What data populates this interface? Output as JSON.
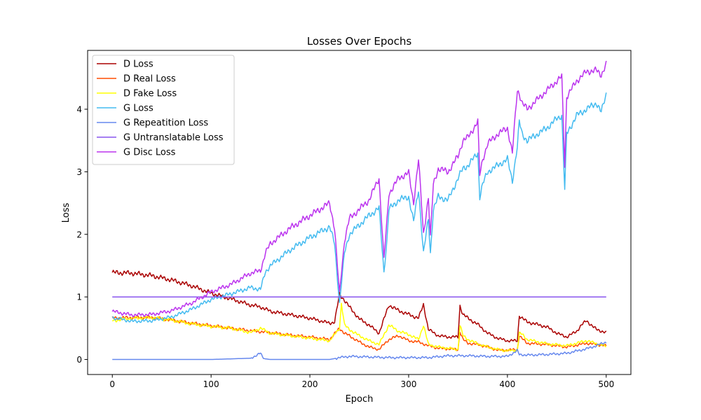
{
  "chart_data": {
    "type": "line",
    "title": "Losses Over Epochs",
    "xlabel": "Epoch",
    "ylabel": "Loss",
    "xlim": [
      -25,
      525
    ],
    "ylim": [
      -0.24,
      4.94
    ],
    "xticks": [
      0,
      100,
      200,
      300,
      400,
      500
    ],
    "yticks": [
      0,
      1,
      2,
      3,
      4
    ],
    "grid": false,
    "legend_position": "top-left",
    "series": [
      {
        "name": "D Loss",
        "color": "#aa0000",
        "x": [
          0,
          20,
          40,
          60,
          80,
          100,
          120,
          140,
          150,
          160,
          200,
          220,
          225,
          230,
          235,
          240,
          250,
          260,
          270,
          280,
          290,
          300,
          310,
          315,
          320,
          330,
          340,
          350,
          352,
          355,
          360,
          370,
          380,
          390,
          400,
          410,
          412,
          415,
          420,
          440,
          450,
          460,
          470,
          475,
          480,
          490,
          500
        ],
        "values": [
          1.39,
          1.38,
          1.34,
          1.27,
          1.18,
          1.06,
          0.97,
          0.87,
          0.84,
          0.77,
          0.66,
          0.58,
          0.6,
          1.04,
          0.95,
          0.84,
          0.65,
          0.55,
          0.42,
          0.87,
          0.78,
          0.72,
          0.66,
          0.88,
          0.48,
          0.38,
          0.36,
          0.36,
          0.86,
          0.72,
          0.66,
          0.56,
          0.42,
          0.34,
          0.3,
          0.3,
          0.7,
          0.66,
          0.6,
          0.52,
          0.42,
          0.36,
          0.45,
          0.55,
          0.62,
          0.48,
          0.43
        ]
      },
      {
        "name": "D Real Loss",
        "color": "#ff4d00",
        "x": [
          0,
          20,
          40,
          60,
          80,
          100,
          120,
          140,
          160,
          180,
          200,
          220,
          230,
          235,
          240,
          250,
          260,
          270,
          280,
          290,
          300,
          310,
          320,
          330,
          340,
          350,
          352,
          355,
          360,
          370,
          380,
          390,
          400,
          410,
          412,
          415,
          420,
          440,
          450,
          460,
          480,
          500
        ],
        "values": [
          0.66,
          0.67,
          0.67,
          0.63,
          0.58,
          0.54,
          0.5,
          0.46,
          0.43,
          0.39,
          0.36,
          0.32,
          0.5,
          0.42,
          0.38,
          0.28,
          0.2,
          0.16,
          0.32,
          0.38,
          0.3,
          0.28,
          0.22,
          0.18,
          0.17,
          0.16,
          0.45,
          0.32,
          0.26,
          0.24,
          0.2,
          0.15,
          0.15,
          0.16,
          0.38,
          0.33,
          0.26,
          0.24,
          0.22,
          0.2,
          0.26,
          0.22
        ]
      },
      {
        "name": "D Fake Loss",
        "color": "#ffff00",
        "x": [
          0,
          20,
          40,
          60,
          80,
          100,
          120,
          140,
          150,
          160,
          180,
          200,
          220,
          230,
          232,
          235,
          240,
          250,
          260,
          270,
          280,
          290,
          300,
          310,
          315,
          320,
          330,
          340,
          350,
          352,
          355,
          360,
          370,
          380,
          390,
          400,
          410,
          412,
          415,
          420,
          440,
          460,
          480,
          500
        ],
        "values": [
          0.62,
          0.66,
          0.67,
          0.63,
          0.57,
          0.53,
          0.5,
          0.43,
          0.5,
          0.42,
          0.38,
          0.34,
          0.3,
          0.5,
          0.9,
          0.55,
          0.48,
          0.38,
          0.3,
          0.24,
          0.55,
          0.45,
          0.4,
          0.32,
          0.55,
          0.24,
          0.2,
          0.18,
          0.16,
          0.55,
          0.38,
          0.32,
          0.25,
          0.2,
          0.16,
          0.14,
          0.15,
          0.42,
          0.4,
          0.32,
          0.25,
          0.22,
          0.3,
          0.21
        ]
      },
      {
        "name": "G Loss",
        "color": "#44bbf0",
        "x": [
          0,
          20,
          40,
          60,
          80,
          100,
          120,
          140,
          150,
          155,
          160,
          180,
          200,
          220,
          225,
          230,
          235,
          240,
          260,
          270,
          275,
          278,
          280,
          290,
          300,
          305,
          310,
          315,
          320,
          322,
          325,
          330,
          340,
          350,
          355,
          360,
          370,
          372,
          375,
          380,
          390,
          400,
          405,
          410,
          412,
          415,
          420,
          430,
          440,
          450,
          455,
          458,
          460,
          470,
          480,
          490,
          495,
          500
        ],
        "values": [
          0.67,
          0.61,
          0.62,
          0.68,
          0.8,
          0.96,
          1.05,
          1.15,
          1.12,
          1.4,
          1.5,
          1.75,
          1.95,
          2.12,
          1.85,
          0.9,
          1.7,
          2.0,
          2.3,
          2.42,
          1.4,
          1.9,
          2.4,
          2.55,
          2.6,
          2.2,
          2.72,
          1.7,
          2.25,
          1.7,
          2.4,
          2.6,
          2.55,
          2.9,
          3.05,
          3.1,
          3.3,
          2.6,
          2.8,
          3.0,
          3.1,
          3.2,
          2.85,
          3.4,
          3.8,
          3.6,
          3.5,
          3.6,
          3.7,
          3.85,
          3.9,
          2.72,
          3.6,
          3.9,
          4.0,
          4.1,
          3.95,
          4.25
        ]
      },
      {
        "name": "G Repeatition Loss",
        "color": "#6688ee",
        "x": [
          0,
          100,
          140,
          150,
          152,
          155,
          160,
          200,
          220,
          230,
          240,
          260,
          280,
          300,
          320,
          340,
          360,
          380,
          400,
          410,
          412,
          420,
          440,
          460,
          480,
          490,
          500
        ],
        "values": [
          0.0,
          0.0,
          0.02,
          0.1,
          0.04,
          0.01,
          0.0,
          0.0,
          0.0,
          0.03,
          0.05,
          0.04,
          0.03,
          0.03,
          0.03,
          0.06,
          0.06,
          0.05,
          0.05,
          0.14,
          0.08,
          0.07,
          0.08,
          0.1,
          0.17,
          0.22,
          0.28
        ]
      },
      {
        "name": "G Untranslatable Loss",
        "color": "#8855ee",
        "x": [
          0,
          500
        ],
        "values": [
          1.0,
          1.0
        ]
      },
      {
        "name": "G Disc Loss",
        "color": "#bb33ee",
        "x": [
          0,
          20,
          40,
          60,
          80,
          100,
          120,
          140,
          150,
          155,
          160,
          180,
          200,
          220,
          225,
          230,
          235,
          240,
          260,
          270,
          275,
          278,
          280,
          290,
          300,
          305,
          310,
          315,
          320,
          322,
          325,
          330,
          340,
          350,
          355,
          360,
          370,
          372,
          375,
          380,
          390,
          400,
          405,
          410,
          412,
          415,
          420,
          430,
          440,
          450,
          455,
          458,
          460,
          470,
          480,
          490,
          495,
          500
        ],
        "values": [
          0.77,
          0.71,
          0.72,
          0.78,
          0.9,
          1.08,
          1.2,
          1.38,
          1.42,
          1.7,
          1.85,
          2.1,
          2.3,
          2.5,
          2.1,
          1.05,
          1.9,
          2.25,
          2.55,
          2.9,
          1.6,
          2.2,
          2.65,
          2.9,
          2.98,
          2.5,
          3.2,
          2.0,
          2.6,
          1.95,
          2.8,
          3.05,
          3.0,
          3.25,
          3.5,
          3.55,
          3.8,
          2.95,
          3.2,
          3.45,
          3.6,
          3.7,
          3.3,
          4.3,
          4.25,
          4.1,
          4.0,
          4.15,
          4.3,
          4.45,
          4.52,
          3.1,
          4.2,
          4.45,
          4.6,
          4.62,
          4.55,
          4.72
        ]
      }
    ]
  }
}
